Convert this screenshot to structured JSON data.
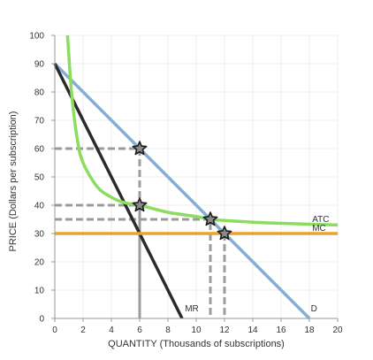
{
  "chart_data": {
    "type": "line",
    "xlabel": "QUANTITY (Thousands of subscriptions)",
    "ylabel": "PRICE (Dollars per subscription)",
    "xlim": [
      0,
      20
    ],
    "ylim": [
      0,
      100
    ],
    "xticks": [
      0,
      2,
      4,
      6,
      8,
      10,
      12,
      14,
      16,
      18,
      20
    ],
    "yticks": [
      0,
      10,
      20,
      30,
      40,
      50,
      60,
      70,
      80,
      90,
      100
    ],
    "grid": true,
    "series": [
      {
        "name": "D",
        "color": "#86aed1",
        "x": [
          0,
          18
        ],
        "y": [
          90,
          0
        ]
      },
      {
        "name": "MR",
        "color": "#2b2b2b",
        "x": [
          0,
          9
        ],
        "y": [
          90,
          0
        ]
      },
      {
        "name": "MC",
        "color": "#e8a330",
        "x": [
          0,
          20
        ],
        "y": [
          30,
          30
        ]
      },
      {
        "name": "ATC",
        "color": "#8cdc5e",
        "x": [
          0.9,
          1.2,
          1.6,
          2,
          3,
          4,
          5,
          6,
          8,
          10,
          11,
          12,
          14,
          16,
          18,
          20
        ],
        "y": [
          100,
          79,
          63,
          55,
          46.5,
          42.8,
          40.8,
          40,
          37.5,
          36,
          35,
          34.6,
          34,
          33.6,
          33.3,
          33
        ]
      }
    ],
    "reference_lines": [
      {
        "y": 60,
        "x": 6
      },
      {
        "y": 40,
        "x": 6
      },
      {
        "y": 35,
        "x": 11
      },
      {
        "y": 30,
        "x": 12
      }
    ],
    "markers": [
      {
        "x": 6,
        "y": 60
      },
      {
        "x": 6,
        "y": 40
      },
      {
        "x": 11,
        "y": 35
      },
      {
        "x": 12,
        "y": 30
      }
    ],
    "annotations": [
      {
        "text": "ATC",
        "x": 18.2,
        "y": 34
      },
      {
        "text": "MC",
        "x": 18.2,
        "y": 31
      },
      {
        "text": "MR",
        "x": 9.2,
        "y": 2.5
      },
      {
        "text": "D",
        "x": 18.1,
        "y": 2.5
      }
    ]
  }
}
